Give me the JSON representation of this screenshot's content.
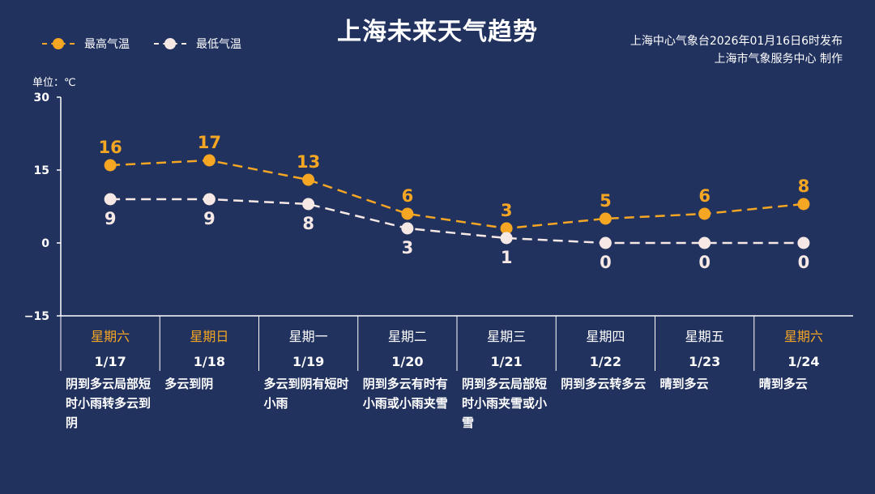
{
  "title": "上海未来天气趋势",
  "legend": {
    "high": "最高气温",
    "low": "最低气温"
  },
  "source": {
    "line1": "上海中心气象台2026年01月16日6时发布",
    "line2": "上海市气象服务中心  制作"
  },
  "unit_label": "单位：℃",
  "colors": {
    "background": "#22325f",
    "high": "#f5a623",
    "low": "#f6e8e4",
    "weekend": "#f5a623",
    "weekday": "#ffffff"
  },
  "chart_data": {
    "type": "line",
    "categories": [
      "1/17",
      "1/18",
      "1/19",
      "1/20",
      "1/21",
      "1/22",
      "1/23",
      "1/24"
    ],
    "weekdays": [
      "星期六",
      "星期日",
      "星期一",
      "星期二",
      "星期三",
      "星期四",
      "星期五",
      "星期六"
    ],
    "weekend": [
      true,
      true,
      false,
      false,
      false,
      false,
      false,
      true
    ],
    "series": [
      {
        "name": "最高气温",
        "values": [
          16,
          17,
          13,
          6,
          3,
          5,
          6,
          8
        ]
      },
      {
        "name": "最低气温",
        "values": [
          9,
          9,
          8,
          3,
          1,
          0,
          0,
          0
        ]
      }
    ],
    "ylim": [
      -15,
      30
    ],
    "yticks": [
      30,
      15,
      0,
      -15
    ],
    "descriptions": [
      "阴到多云局部短时小雨转多云到阴",
      "多云到阴",
      "多云到阴有短时小雨",
      "阴到多云有时有小雨或小雨夹雪",
      "阴到多云局部短时小雨夹雪或小雪",
      "阴到多云转多云",
      "晴到多云",
      "晴到多云"
    ]
  }
}
